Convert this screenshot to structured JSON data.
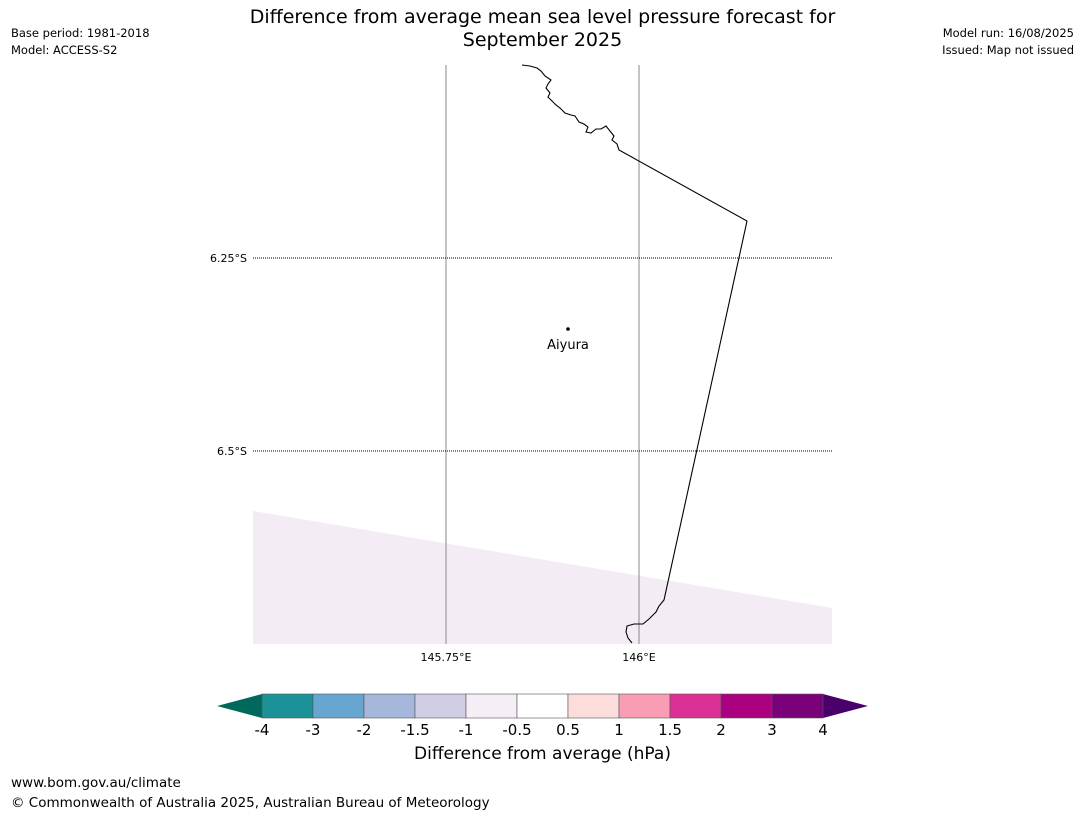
{
  "header": {
    "title_line1": "Difference from average mean sea level pressure forecast for",
    "title_line2": "September 2025",
    "base_period": "Base period: 1981-2018",
    "model": "Model: ACCESS-S2",
    "model_run": "Model run: 16/08/2025",
    "issued": "Issued: Map not issued"
  },
  "map": {
    "lat_labels": [
      "6.25°S",
      "6.5°S"
    ],
    "lon_labels": [
      "145.75°E",
      "146°E"
    ],
    "place": {
      "name": "Aiyura"
    },
    "shaded_region_color": "#f3ecf5"
  },
  "colorbar": {
    "title": "Difference from average (hPa)",
    "ticks": [
      "-4",
      "-3",
      "-2",
      "-1.5",
      "-1",
      "-0.5",
      "0.5",
      "1",
      "1.5",
      "2",
      "3",
      "4"
    ],
    "colors": [
      "#1b9298",
      "#66a6d0",
      "#a5b8db",
      "#d0cee4",
      "#f6eef7",
      "#ffffff",
      "#fddcdc",
      "#f89db4",
      "#db3197",
      "#ab007f",
      "#7a0179"
    ],
    "extend_low_color": "#00695c",
    "extend_high_color": "#4a006a"
  },
  "footer": {
    "url": "www.bom.gov.au/climate",
    "copyright": "© Commonwealth of Australia 2025, Australian Bureau of Meteorology"
  }
}
